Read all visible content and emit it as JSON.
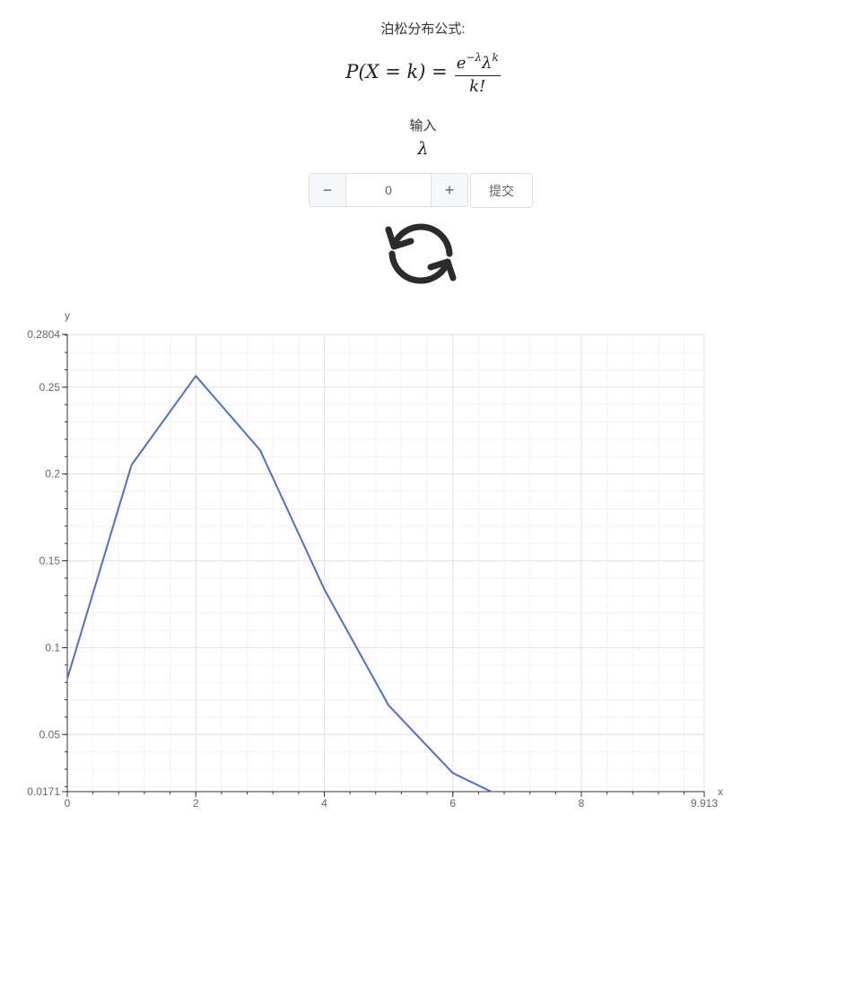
{
  "title": "泊松分布公式:",
  "formula": {
    "lhs": "P(X = k) =",
    "numerator_base": "e",
    "numerator_exp": "−λ",
    "numerator_lambda": "λ",
    "numerator_k": "k",
    "denominator": "k!"
  },
  "input": {
    "label": "输入",
    "param_label": "λ",
    "value": "0",
    "minus_label": "−",
    "plus_label": "+",
    "submit_label": "提交"
  },
  "icons": {
    "refresh": "refresh-icon"
  },
  "chart_data": {
    "type": "line",
    "xlabel": "x",
    "ylabel": "y",
    "xlim": [
      0,
      9.913
    ],
    "ylim": [
      0.0171,
      0.2804
    ],
    "x_ticks": [
      0,
      2,
      4,
      6,
      8,
      9.913
    ],
    "x_tick_labels": [
      "0",
      "2",
      "4",
      "6",
      "8",
      "9.913"
    ],
    "y_ticks": [
      0.0171,
      0.05,
      0.1,
      0.15,
      0.2,
      0.25,
      0.2804
    ],
    "y_tick_labels": [
      "0.0171",
      "0.05",
      "0.1",
      "0.15",
      "0.2",
      "0.25",
      "0.2804"
    ],
    "grid": true,
    "color": "#4f6fcf",
    "series": [
      {
        "x": [
          0,
          1,
          2,
          3,
          4,
          5,
          6,
          7
        ],
        "y": [
          0.0821,
          0.2052,
          0.2565,
          0.2138,
          0.1336,
          0.0668,
          0.0278,
          0.0099
        ]
      }
    ]
  }
}
